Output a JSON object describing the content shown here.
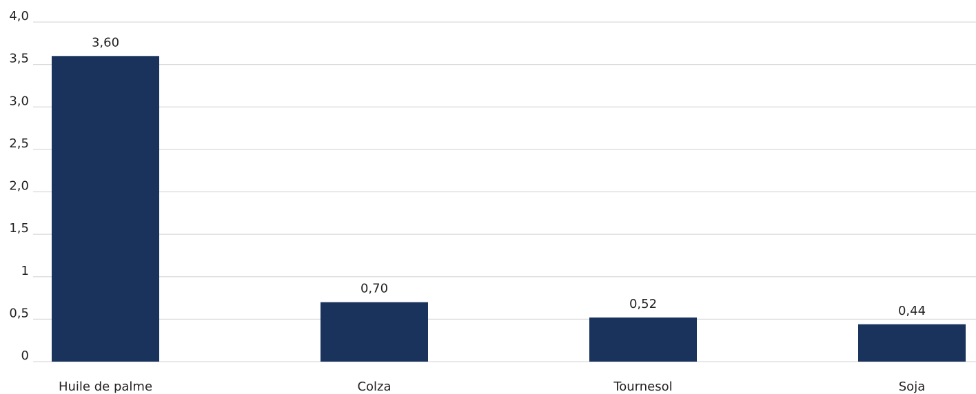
{
  "chart_data": {
    "type": "bar",
    "categories": [
      "Huile de palme",
      "Colza",
      "Tournesol",
      "Soja"
    ],
    "values": [
      3.6,
      0.7,
      0.52,
      0.44
    ],
    "value_labels": [
      "3,60",
      "0,70",
      "0,52",
      "0,44"
    ],
    "ylim": [
      0,
      4
    ],
    "yticks": [
      {
        "value": 0,
        "label": "0"
      },
      {
        "value": 0.5,
        "label": "0,5"
      },
      {
        "value": 1,
        "label": "1"
      },
      {
        "value": 1.5,
        "label": "1,5"
      },
      {
        "value": 2,
        "label": "2,0"
      },
      {
        "value": 2.5,
        "label": "2,5"
      },
      {
        "value": 3,
        "label": "3,0"
      },
      {
        "value": 3.5,
        "label": "3,5"
      },
      {
        "value": 4,
        "label": "4,0"
      }
    ],
    "grid": true,
    "legend": "none",
    "bar_color": "#1a335c",
    "grid_color": "#d9d9d9"
  }
}
